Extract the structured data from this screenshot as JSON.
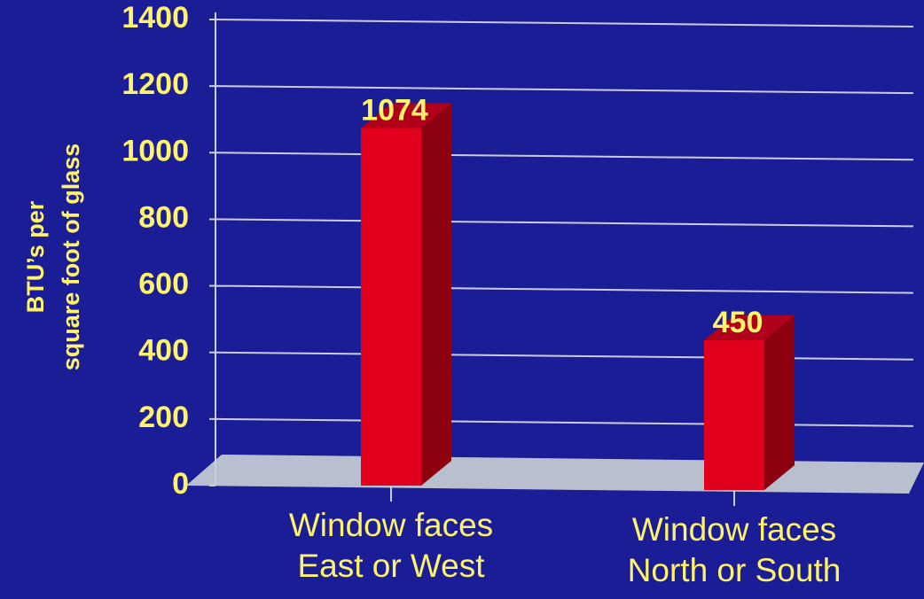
{
  "chart_data": {
    "type": "bar",
    "ylabel": "BTU’s per\nsquare foot of glass",
    "categories": [
      "Window faces\nEast or West",
      "Window faces\nNorth or South"
    ],
    "values": [
      1074,
      450
    ],
    "color": "#e0001e",
    "ylim": [
      0,
      1400
    ],
    "yticks": [
      0,
      200,
      400,
      600,
      800,
      1000,
      1200,
      1400
    ],
    "grid": true
  }
}
